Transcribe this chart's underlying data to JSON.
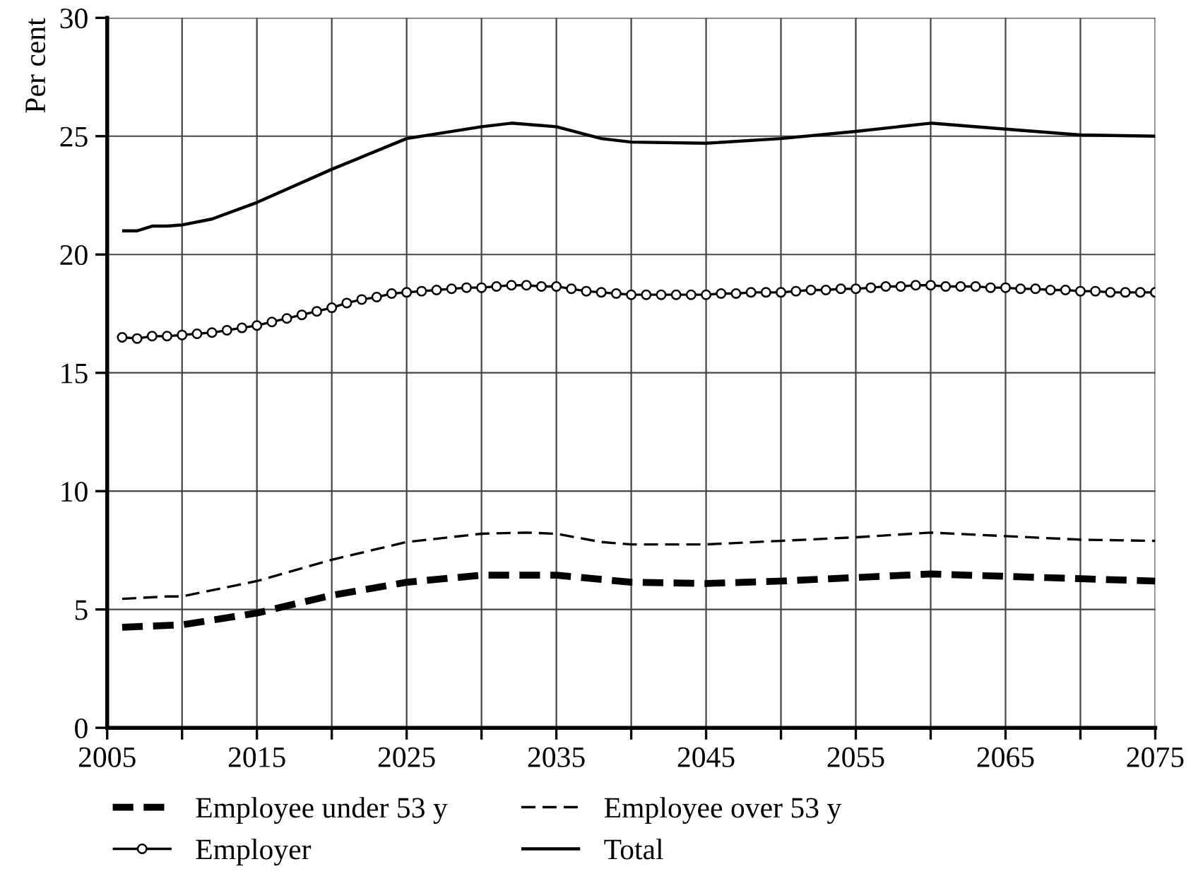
{
  "chart_data": {
    "type": "line",
    "ylabel": "Per cent",
    "xlim": [
      2005,
      2075
    ],
    "ylim": [
      0,
      30
    ],
    "xticks": [
      2005,
      {
        "value": 2010,
        "label": null
      },
      2015,
      {
        "value": 2020,
        "label": null
      },
      2025,
      {
        "value": 2030,
        "label": null
      },
      2035,
      {
        "value": 2040,
        "label": null
      },
      2045,
      {
        "value": 2050,
        "label": null
      },
      2055,
      {
        "value": 2060,
        "label": null
      },
      2065,
      {
        "value": 2070,
        "label": null
      },
      2075
    ],
    "yticks": [
      0,
      5,
      10,
      15,
      20,
      25,
      30
    ],
    "grid": true,
    "legend": "bottom",
    "marker": "none",
    "line_style": "solid",
    "series": [
      {
        "name": "Employee under 53 y",
        "color": "#000000",
        "line_style": "dashed",
        "x": [
          2006,
          2010,
          2015,
          2020,
          2025,
          2030,
          2035,
          2040,
          2045,
          2050,
          2055,
          2060,
          2065,
          2070,
          2075
        ],
        "values": [
          4.25,
          4.35,
          4.85,
          5.6,
          6.15,
          6.45,
          6.45,
          6.15,
          6.1,
          6.2,
          6.35,
          6.5,
          6.4,
          6.3,
          6.2
        ]
      },
      {
        "name": "Employee over 53 y",
        "color": "#000000",
        "line_style": "dashed",
        "x": [
          2006,
          2009,
          2010,
          2015,
          2020,
          2025,
          2030,
          2033,
          2035,
          2038,
          2040,
          2045,
          2050,
          2055,
          2060,
          2065,
          2070,
          2075
        ],
        "values": [
          5.45,
          5.55,
          5.55,
          6.2,
          7.1,
          7.85,
          8.2,
          8.25,
          8.2,
          7.85,
          7.75,
          7.75,
          7.9,
          8.05,
          8.25,
          8.1,
          7.95,
          7.9
        ]
      },
      {
        "name": "Employer",
        "color": "#000000",
        "marker": "circle",
        "x": [
          2006,
          2007,
          2008,
          2009,
          2010,
          2011,
          2012,
          2013,
          2014,
          2015,
          2016,
          2017,
          2018,
          2019,
          2020,
          2021,
          2022,
          2023,
          2024,
          2025,
          2026,
          2027,
          2028,
          2029,
          2030,
          2031,
          2032,
          2033,
          2034,
          2035,
          2036,
          2037,
          2038,
          2039,
          2040,
          2041,
          2042,
          2043,
          2044,
          2045,
          2046,
          2047,
          2048,
          2049,
          2050,
          2051,
          2052,
          2053,
          2054,
          2055,
          2056,
          2057,
          2058,
          2059,
          2060,
          2061,
          2062,
          2063,
          2064,
          2065,
          2066,
          2067,
          2068,
          2069,
          2070,
          2071,
          2072,
          2073,
          2074,
          2075
        ],
        "values": [
          16.5,
          16.45,
          16.55,
          16.55,
          16.6,
          16.65,
          16.7,
          16.8,
          16.9,
          17.0,
          17.15,
          17.3,
          17.45,
          17.6,
          17.75,
          17.95,
          18.1,
          18.2,
          18.35,
          18.4,
          18.45,
          18.5,
          18.55,
          18.6,
          18.6,
          18.65,
          18.7,
          18.7,
          18.65,
          18.65,
          18.55,
          18.45,
          18.4,
          18.35,
          18.3,
          18.3,
          18.3,
          18.3,
          18.3,
          18.3,
          18.35,
          18.35,
          18.4,
          18.4,
          18.4,
          18.45,
          18.5,
          18.5,
          18.55,
          18.55,
          18.6,
          18.65,
          18.65,
          18.7,
          18.7,
          18.65,
          18.65,
          18.65,
          18.6,
          18.6,
          18.55,
          18.55,
          18.5,
          18.5,
          18.45,
          18.45,
          18.4,
          18.4,
          18.4,
          18.4
        ]
      },
      {
        "name": "Total",
        "color": "#000000",
        "x": [
          2006,
          2007,
          2008,
          2009,
          2010,
          2012,
          2015,
          2020,
          2025,
          2030,
          2032,
          2035,
          2038,
          2040,
          2045,
          2050,
          2055,
          2060,
          2065,
          2070,
          2075
        ],
        "values": [
          21.0,
          21.0,
          21.2,
          21.2,
          21.25,
          21.5,
          22.2,
          23.6,
          24.9,
          25.4,
          25.55,
          25.4,
          24.9,
          24.75,
          24.7,
          24.9,
          25.2,
          25.55,
          25.3,
          25.05,
          25.0
        ]
      }
    ]
  }
}
